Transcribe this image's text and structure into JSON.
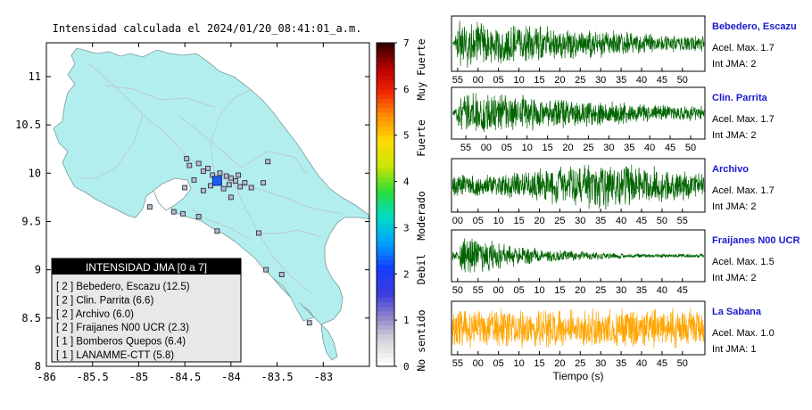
{
  "map": {
    "title": "Intensidad calculada el 2024/01/20_08:41:01_a.m.",
    "x_ticks": [
      "-86",
      "-85.5",
      "-85",
      "-84.5",
      "-84",
      "-83.5",
      "-83"
    ],
    "y_ticks": [
      "11",
      "10.5",
      "10",
      "9.5",
      "9",
      "8.5",
      "8"
    ],
    "xlim": [
      -86,
      -82.5
    ],
    "ylim": [
      8,
      11.35
    ],
    "colors": {
      "land": "#b2eeee",
      "ocean": "#ffffff"
    },
    "epicenter": {
      "lon": -84.15,
      "lat": 9.92
    },
    "stations": [
      {
        "lon": -84.45,
        "lat": 10.08
      },
      {
        "lon": -84.35,
        "lat": 10.1
      },
      {
        "lon": -84.3,
        "lat": 10.02
      },
      {
        "lon": -84.25,
        "lat": 10.05
      },
      {
        "lon": -84.2,
        "lat": 9.98
      },
      {
        "lon": -84.12,
        "lat": 10.0
      },
      {
        "lon": -84.05,
        "lat": 9.97
      },
      {
        "lon": -84.0,
        "lat": 9.95
      },
      {
        "lon": -83.95,
        "lat": 9.92
      },
      {
        "lon": -84.02,
        "lat": 9.88
      },
      {
        "lon": -83.9,
        "lat": 9.86
      },
      {
        "lon": -83.85,
        "lat": 9.9
      },
      {
        "lon": -84.4,
        "lat": 9.93
      },
      {
        "lon": -84.22,
        "lat": 9.87
      },
      {
        "lon": -84.08,
        "lat": 9.84
      },
      {
        "lon": -83.78,
        "lat": 9.85
      },
      {
        "lon": -83.65,
        "lat": 9.9
      },
      {
        "lon": -83.6,
        "lat": 10.12
      },
      {
        "lon": -84.5,
        "lat": 9.85
      },
      {
        "lon": -84.62,
        "lat": 9.6
      },
      {
        "lon": -84.52,
        "lat": 9.58
      },
      {
        "lon": -84.35,
        "lat": 9.55
      },
      {
        "lon": -84.15,
        "lat": 9.4
      },
      {
        "lon": -83.7,
        "lat": 9.38
      },
      {
        "lon": -83.62,
        "lat": 9.0
      },
      {
        "lon": -83.15,
        "lat": 8.45
      },
      {
        "lon": -84.88,
        "lat": 9.65
      },
      {
        "lon": -84.0,
        "lat": 9.75
      },
      {
        "lon": -83.92,
        "lat": 9.98
      },
      {
        "lon": -84.3,
        "lat": 9.82
      },
      {
        "lon": -83.45,
        "lat": 8.95
      },
      {
        "lon": -84.48,
        "lat": 10.15
      }
    ],
    "legend": {
      "title": "INTENSIDAD JMA [0 a 7]",
      "items": [
        "[ 2 ] Bebedero, Escazu (12.5)",
        "[ 2 ] Clin. Parrita (6.6)",
        "[ 2 ] Archivo (6.0)",
        "[ 2 ] Fraijanes N00 UCR (2.3)",
        "[ 1 ] Bomberos Quepos (6.4)",
        "[ 1 ] LANAMME-CTT (5.8)"
      ]
    }
  },
  "colorbar": {
    "ticks": [
      "7",
      "6",
      "5",
      "4",
      "3",
      "2",
      "1",
      "0"
    ],
    "labels": [
      "Muy Fuerte",
      "Fuerte",
      "Moderado",
      "Debil",
      "No sentido"
    ],
    "range": [
      0,
      7
    ]
  },
  "waveforms": [
    {
      "station": "Bebedero, Escazu",
      "acel": "Acel. Max. 1.7",
      "int": "Int JMA: 2",
      "color": "#006400",
      "ticks": [
        "55",
        "00",
        "05",
        "10",
        "15",
        "20",
        "25",
        "30",
        "35",
        "40",
        "45",
        "50"
      ],
      "tick_start_sec": 53.5,
      "envelope": "early"
    },
    {
      "station": "Clin. Parrita",
      "acel": "Acel. Max. 1.7",
      "int": "Int JMA: 2",
      "color": "#006400",
      "ticks": [
        "55",
        "00",
        "05",
        "10",
        "15",
        "20",
        "25",
        "30",
        "35",
        "40",
        "45",
        "50"
      ],
      "tick_start_sec": 51.5,
      "envelope": "early"
    },
    {
      "station": "Archivo",
      "acel": "Acel. Max. 1.7",
      "int": "Int JMA: 2",
      "color": "#006400",
      "ticks": [
        "00",
        "05",
        "10",
        "15",
        "20",
        "25",
        "30",
        "35",
        "40",
        "45",
        "50",
        "55"
      ],
      "tick_start_sec": 58.5,
      "envelope": "mid"
    },
    {
      "station": "Fraijanes N00 UCR",
      "acel": "Acel. Max. 1.5",
      "int": "Int JMA: 2",
      "color": "#006400",
      "ticks": [
        "50",
        "55",
        "00",
        "05",
        "10",
        "15",
        "20",
        "25",
        "30",
        "35",
        "40",
        "45"
      ],
      "tick_start_sec": 48.5,
      "envelope": "decay"
    },
    {
      "station": "La Sabana",
      "acel": "Acel. Max. 1.0",
      "int": "Int JMA: 1",
      "color": "#ffa500",
      "ticks": [
        "55",
        "00",
        "05",
        "10",
        "15",
        "20",
        "25",
        "30",
        "35",
        "40",
        "45",
        "50"
      ],
      "tick_start_sec": 53.5,
      "envelope": "flat"
    }
  ],
  "xlabel": "Tiempo (s)",
  "chart_data": [
    {
      "type": "scatter",
      "title": "Intensidad calculada el 2024/01/20_08:41:01_a.m.",
      "xlabel": "",
      "ylabel": "",
      "xlim": [
        -86,
        -82.5
      ],
      "ylim": [
        8,
        11.35
      ],
      "series": [
        {
          "name": "Bebedero, Escazu",
          "intensity": 2,
          "value": 12.5
        },
        {
          "name": "Clin. Parrita",
          "intensity": 2,
          "value": 6.6
        },
        {
          "name": "Archivo",
          "intensity": 2,
          "value": 6.0
        },
        {
          "name": "Fraijanes N00 UCR",
          "intensity": 2,
          "value": 2.3
        },
        {
          "name": "Bomberos Quepos",
          "intensity": 1,
          "value": 6.4
        },
        {
          "name": "LANAMME-CTT",
          "intensity": 1,
          "value": 5.8
        }
      ]
    },
    {
      "type": "line",
      "xlabel": "Tiempo (s)",
      "series": [
        {
          "name": "Bebedero, Escazu",
          "acel_max": 1.7,
          "int_jma": 2
        },
        {
          "name": "Clin. Parrita",
          "acel_max": 1.7,
          "int_jma": 2
        },
        {
          "name": "Archivo",
          "acel_max": 1.7,
          "int_jma": 2
        },
        {
          "name": "Fraijanes N00 UCR",
          "acel_max": 1.5,
          "int_jma": 2
        },
        {
          "name": "La Sabana",
          "acel_max": 1.0,
          "int_jma": 1
        }
      ]
    }
  ]
}
